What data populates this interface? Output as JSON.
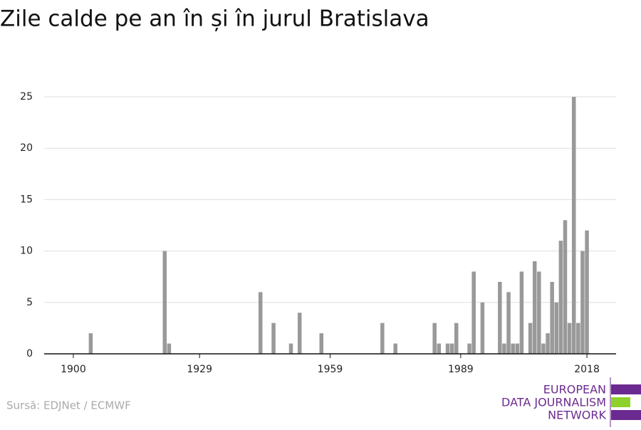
{
  "chart_data": {
    "type": "bar",
    "title": "Zile calde pe an în și în jurul Bratislava",
    "x": [
      1904,
      1921,
      1922,
      1943,
      1946,
      1950,
      1952,
      1957,
      1971,
      1974,
      1983,
      1984,
      1986,
      1987,
      1988,
      1991,
      1992,
      1994,
      1998,
      1999,
      2000,
      2001,
      2002,
      2003,
      2005,
      2006,
      2007,
      2008,
      2009,
      2010,
      2011,
      2012,
      2013,
      2014,
      2015,
      2016,
      2017,
      2018
    ],
    "values": [
      2,
      10,
      1,
      6,
      3,
      1,
      4,
      2,
      3,
      1,
      3,
      1,
      1,
      1,
      3,
      1,
      8,
      5,
      7,
      1,
      6,
      1,
      1,
      8,
      3,
      9,
      8,
      1,
      2,
      7,
      5,
      11,
      13,
      3,
      25,
      3,
      10,
      12
    ],
    "color": "#999999",
    "xlim": [
      1893.3,
      2024.7
    ],
    "xticks": [
      1900,
      1929,
      1959,
      1989,
      2018
    ],
    "ylim": [
      0,
      25
    ],
    "yticks": [
      0,
      5,
      10,
      15,
      20,
      25
    ],
    "grid": true,
    "source": "Sursă: EDJNet / ECMWF",
    "logo": [
      "EUROPEAN",
      "DATA JOURNALISM",
      "NETWORK"
    ]
  }
}
